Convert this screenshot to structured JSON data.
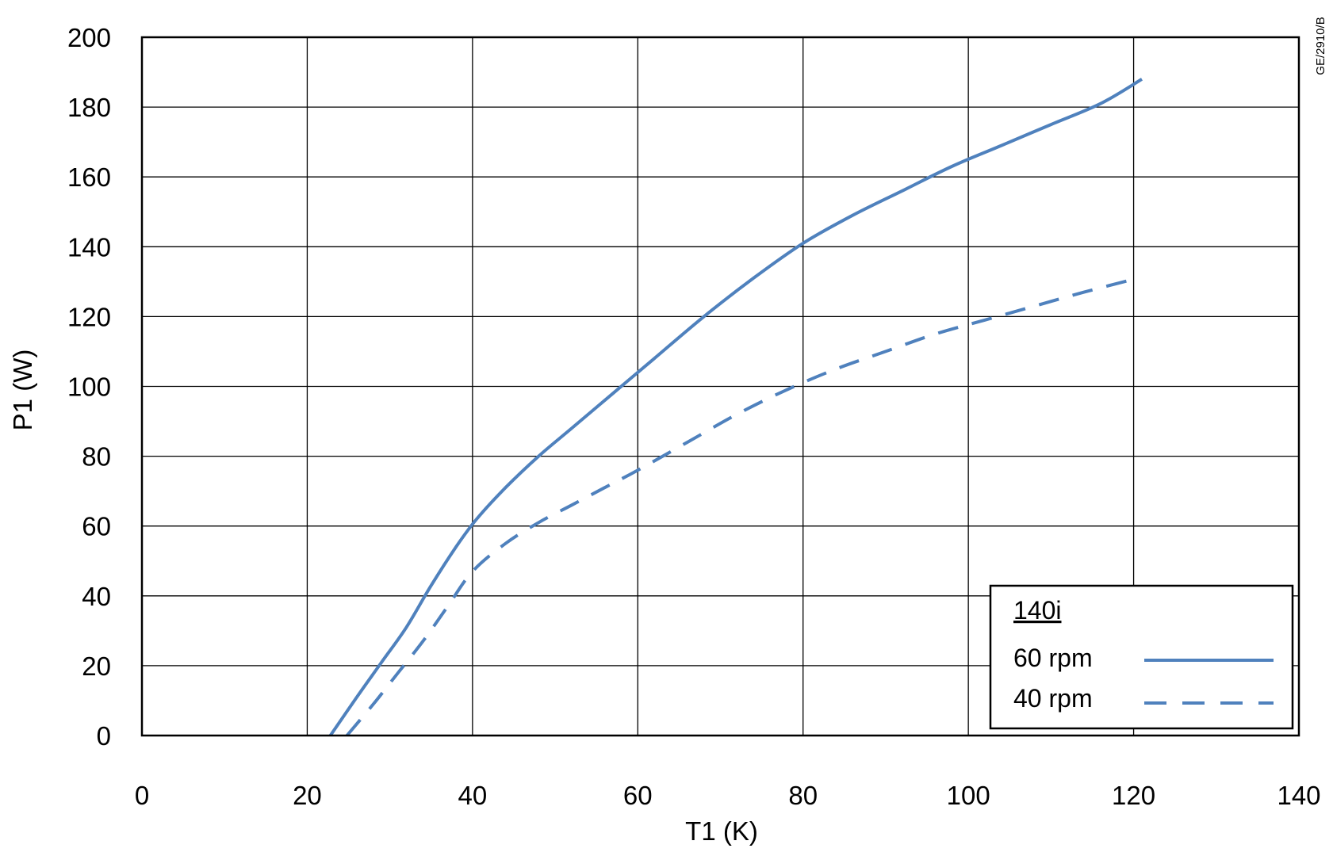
{
  "chart_data": {
    "type": "line",
    "xlabel": "T1 (K)",
    "ylabel": "P1 (W)",
    "xlim": [
      0,
      140
    ],
    "ylim": [
      0,
      200
    ],
    "xticks": [
      0,
      20,
      40,
      60,
      80,
      100,
      120,
      140
    ],
    "yticks": [
      0,
      20,
      40,
      60,
      80,
      100,
      120,
      140,
      160,
      180,
      200
    ],
    "grid": true,
    "legend_position": "bottom-right",
    "legend_title": "140i",
    "series": [
      {
        "name": "60 rpm",
        "style": "solid",
        "color": "#4f81bd",
        "x": [
          22.8,
          26,
          29,
          32,
          35,
          38,
          40.5,
          44,
          48,
          52,
          57,
          62,
          68,
          74,
          80,
          86,
          92,
          98,
          104,
          110,
          116,
          121
        ],
        "y": [
          0,
          11,
          21,
          31,
          43,
          54,
          62,
          71,
          80,
          88,
          98,
          108,
          120,
          131,
          141,
          149,
          156,
          163,
          169,
          175,
          181,
          188
        ]
      },
      {
        "name": "40 rpm",
        "style": "dashed",
        "color": "#4f81bd",
        "x": [
          24.8,
          28,
          31,
          34,
          37,
          40,
          44,
          48,
          52,
          56,
          60,
          66,
          72,
          78,
          84,
          90,
          96,
          102,
          108,
          114,
          120.5
        ],
        "y": [
          0,
          9,
          18,
          27,
          37,
          47,
          55,
          61,
          66,
          71,
          76,
          84,
          92,
          99,
          105,
          110,
          115,
          119,
          123,
          127,
          131
        ]
      }
    ]
  },
  "figure_code": "GE/2910/B"
}
